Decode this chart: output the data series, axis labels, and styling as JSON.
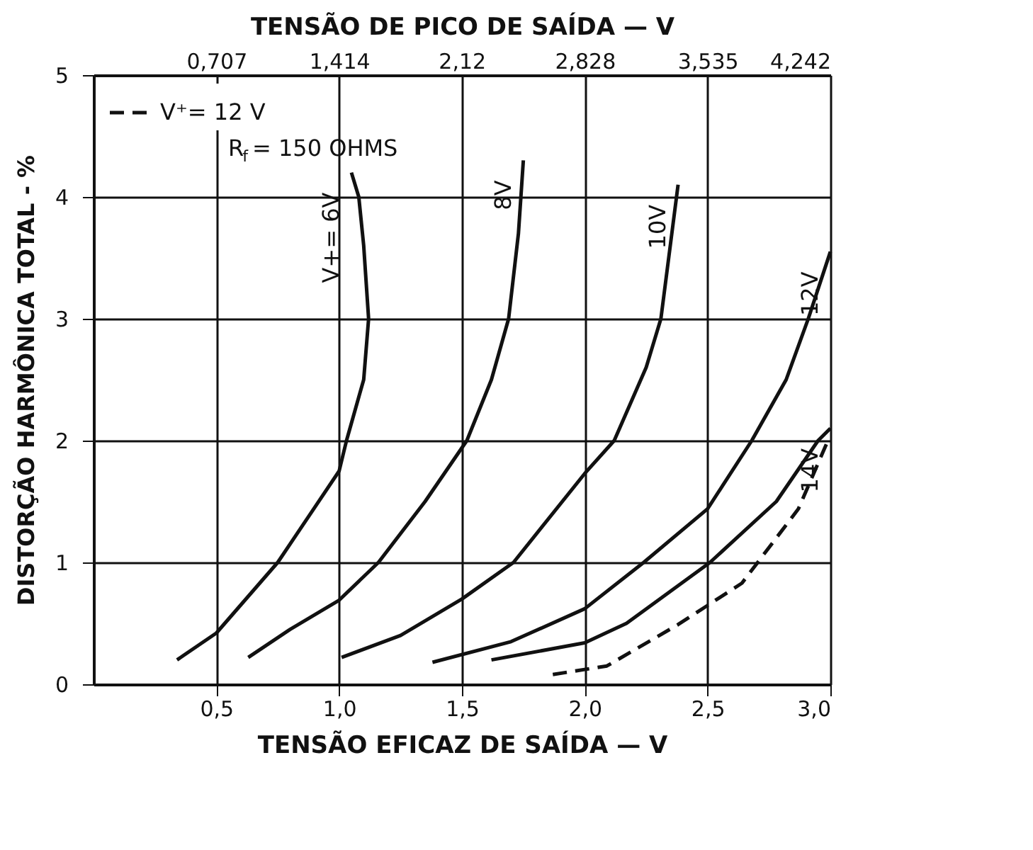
{
  "chart_data": {
    "type": "line",
    "xlabel": "TENSÃO EFICAZ DE SAÍDA — V",
    "x2label": "TENSÃO DE PICO DE SAÍDA — V",
    "ylabel": "DISTORÇÃO HARMÔNICA TOTAL - %",
    "xlim": [
      0,
      3.0
    ],
    "xticks": [
      {
        "value": 0.5,
        "label": "0,5"
      },
      {
        "value": 1.0,
        "label": "1,0"
      },
      {
        "value": 1.5,
        "label": "1,5"
      },
      {
        "value": 2.0,
        "label": "2,0"
      },
      {
        "value": 2.5,
        "label": "2,5"
      },
      {
        "value": 3.0,
        "label": "3,0"
      }
    ],
    "x2lim": [
      0,
      4.242
    ],
    "x2ticks": [
      {
        "value": 0.707,
        "label": "0,707"
      },
      {
        "value": 1.414,
        "label": "1,414"
      },
      {
        "value": 2.12,
        "label": "2,12"
      },
      {
        "value": 2.828,
        "label": "2,828"
      },
      {
        "value": 3.535,
        "label": "3,535"
      },
      {
        "value": 4.242,
        "label": "4,242"
      }
    ],
    "ylim": [
      0,
      5
    ],
    "yticks": [
      0,
      1,
      2,
      3,
      4,
      5
    ],
    "grid": true,
    "legend": "top left",
    "series": [
      {
        "name": "V+= 6V",
        "color": "#111111",
        "line_style": "solid",
        "x": [
          0.34,
          0.5,
          0.75,
          0.9,
          1.0,
          1.03,
          1.1,
          1.12,
          1.1,
          1.08,
          1.05
        ],
        "values": [
          0.2,
          0.42,
          1.0,
          1.45,
          1.75,
          2.0,
          2.5,
          3.0,
          3.6,
          4.0,
          4.2
        ]
      },
      {
        "name": "8V",
        "color": "#111111",
        "line_style": "solid",
        "x": [
          0.63,
          0.8,
          1.0,
          1.16,
          1.35,
          1.52,
          1.62,
          1.69,
          1.73,
          1.75
        ],
        "values": [
          0.22,
          0.45,
          0.69,
          1.0,
          1.5,
          2.0,
          2.5,
          3.0,
          3.7,
          4.3
        ]
      },
      {
        "name": "10V",
        "color": "#111111",
        "line_style": "solid",
        "x": [
          1.01,
          1.25,
          1.5,
          1.71,
          2.0,
          2.12,
          2.25,
          2.31,
          2.38
        ],
        "values": [
          0.22,
          0.4,
          0.7,
          1.0,
          1.73,
          2.0,
          2.6,
          3.0,
          4.1
        ]
      },
      {
        "name": "12V",
        "color": "#111111",
        "line_style": "solid",
        "x": [
          1.38,
          1.7,
          2.0,
          2.24,
          2.5,
          2.68,
          2.82,
          2.91,
          3.0
        ],
        "values": [
          0.18,
          0.35,
          0.62,
          1.0,
          1.44,
          2.0,
          2.5,
          3.0,
          3.55
        ]
      },
      {
        "name": "14V",
        "color": "#111111",
        "line_style": "solid",
        "x": [
          1.62,
          2.0,
          2.17,
          2.51,
          2.78,
          2.95,
          3.0
        ],
        "values": [
          0.2,
          0.34,
          0.5,
          1.0,
          1.5,
          2.0,
          2.1
        ]
      },
      {
        "name": "V⁺= 12 V",
        "color": "#111111",
        "line_style": "dashed",
        "x": [
          1.87,
          2.09,
          2.38,
          2.64,
          2.87,
          2.99
        ],
        "values": [
          0.08,
          0.15,
          0.49,
          0.83,
          1.44,
          2.0
        ]
      }
    ],
    "annotations": [
      "R$_{f}$= 150 OHMS"
    ]
  }
}
